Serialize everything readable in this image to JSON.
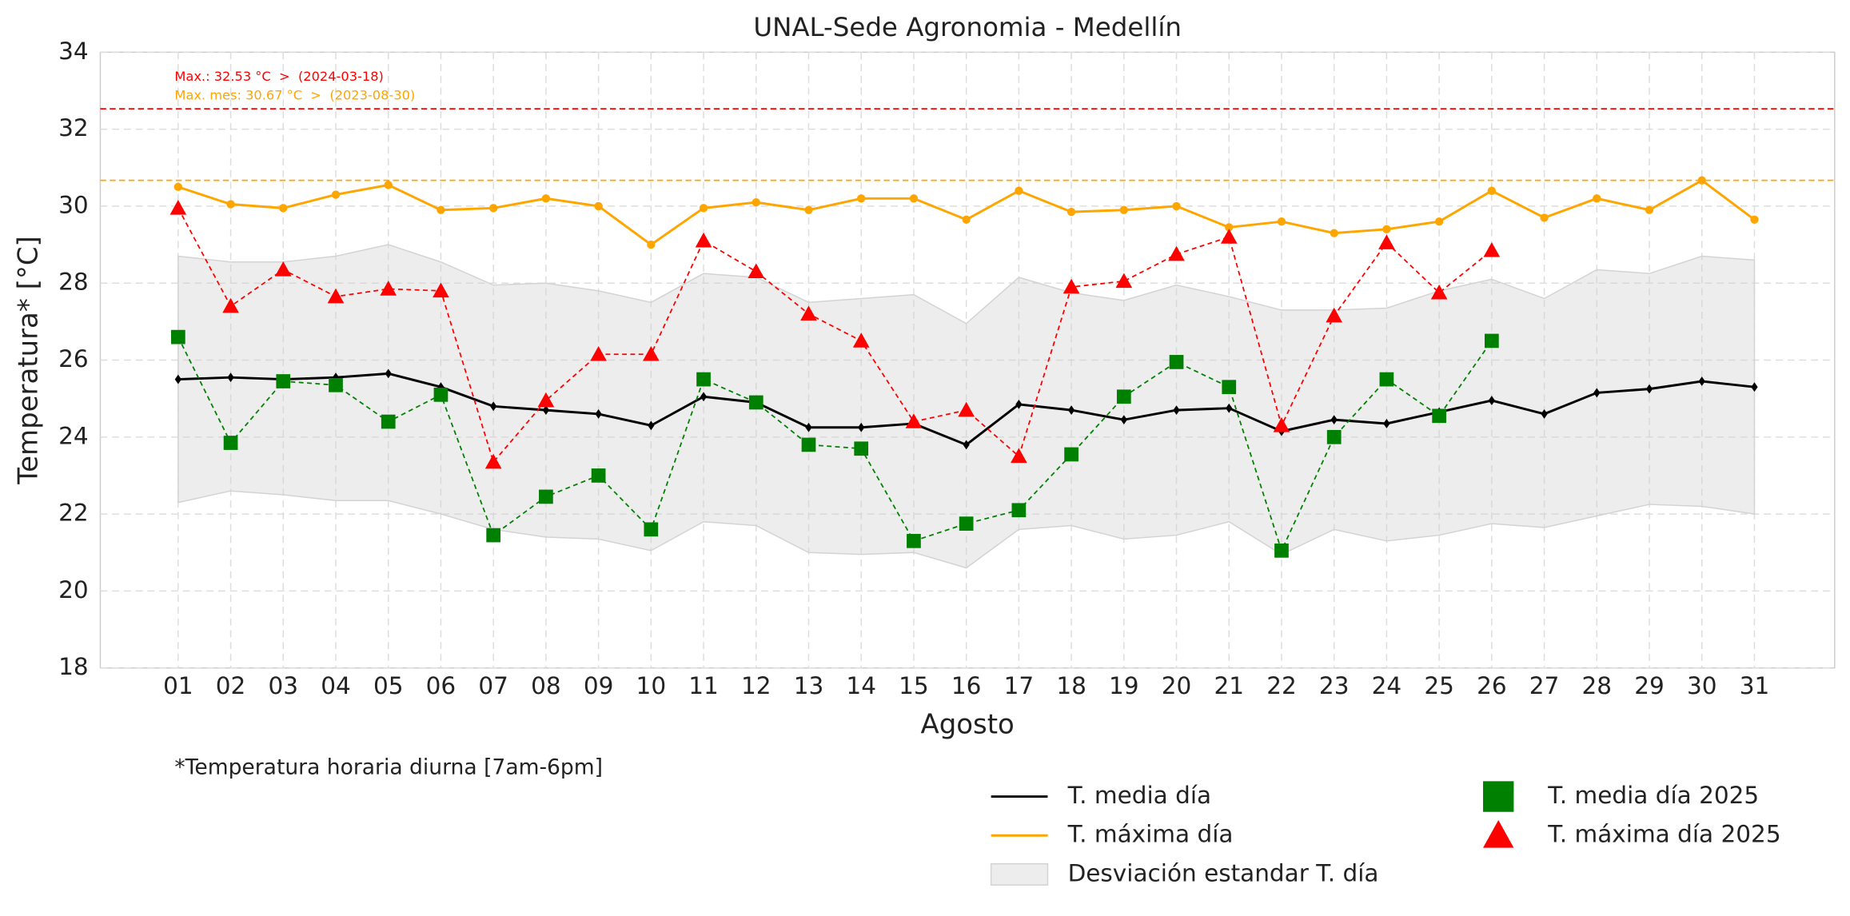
{
  "chart_data": {
    "type": "line",
    "title": "UNAL-Sede Agronomia - Medellín",
    "x_label": "Agosto",
    "y_label": "Temperatura* [°C]",
    "footnote": "*Temperatura horaria diurna [7am-6pm]",
    "categories": [
      "01",
      "02",
      "03",
      "04",
      "05",
      "06",
      "07",
      "08",
      "09",
      "10",
      "11",
      "12",
      "13",
      "14",
      "15",
      "16",
      "17",
      "18",
      "19",
      "20",
      "21",
      "22",
      "23",
      "24",
      "25",
      "26",
      "27",
      "28",
      "29",
      "30",
      "31"
    ],
    "ylim": [
      18,
      34
    ],
    "yticks": [
      18,
      20,
      22,
      24,
      26,
      28,
      30,
      32,
      34
    ],
    "grid": true,
    "hlines": [
      {
        "value": 32.53,
        "color": "#ff0000",
        "label": "Max.: 32.53 °C  >  (2024-03-18)"
      },
      {
        "value": 30.67,
        "color": "#ffa500",
        "label": "Max. mes: 30.67 °C  >  (2023-08-30)"
      }
    ],
    "series": [
      {
        "name": "T. media día",
        "color": "#000000",
        "style": "solid",
        "marker": "diamond",
        "values": [
          25.5,
          25.55,
          25.5,
          25.55,
          25.65,
          25.3,
          24.8,
          24.7,
          24.6,
          24.3,
          25.05,
          24.9,
          24.25,
          24.25,
          24.35,
          23.8,
          24.85,
          24.7,
          24.45,
          24.7,
          24.75,
          24.15,
          24.45,
          24.35,
          24.65,
          24.95,
          24.6,
          25.15,
          25.25,
          25.45,
          25.3
        ]
      },
      {
        "name": "T. máxima día",
        "color": "#ffa500",
        "style": "solid",
        "marker": "circle",
        "values": [
          30.5,
          30.05,
          29.95,
          30.3,
          30.55,
          29.9,
          29.95,
          30.2,
          30.0,
          29.0,
          29.95,
          30.1,
          29.9,
          30.2,
          30.2,
          29.65,
          30.4,
          29.85,
          29.9,
          30.0,
          29.45,
          29.6,
          29.3,
          29.4,
          29.6,
          30.4,
          29.7,
          30.2,
          29.9,
          30.67,
          29.65
        ]
      },
      {
        "name": "Desviación estandar T. día",
        "color": "#d3d3d3",
        "style": "band",
        "upper": [
          28.7,
          28.55,
          28.55,
          28.7,
          29.0,
          28.55,
          27.95,
          28.0,
          27.8,
          27.5,
          28.25,
          28.15,
          27.5,
          27.6,
          27.7,
          26.95,
          28.15,
          27.75,
          27.55,
          27.95,
          27.65,
          27.3,
          27.3,
          27.35,
          27.8,
          28.1,
          27.6,
          28.35,
          28.25,
          28.7,
          28.6
        ],
        "lower": [
          22.3,
          22.6,
          22.5,
          22.35,
          22.35,
          22.0,
          21.6,
          21.4,
          21.35,
          21.05,
          21.8,
          21.7,
          21.0,
          20.95,
          21.0,
          20.6,
          21.6,
          21.7,
          21.35,
          21.45,
          21.8,
          20.95,
          21.6,
          21.3,
          21.45,
          21.75,
          21.65,
          21.95,
          22.25,
          22.2,
          22.0
        ]
      },
      {
        "name": "T. media día 2025",
        "color": "#008000",
        "style": "dashed",
        "marker": "square",
        "values": [
          26.6,
          23.85,
          25.45,
          25.35,
          24.4,
          25.1,
          21.45,
          22.45,
          23.0,
          21.6,
          25.5,
          24.9,
          23.8,
          23.7,
          21.3,
          21.75,
          22.1,
          23.55,
          25.05,
          25.95,
          25.3,
          21.05,
          24.0,
          25.5,
          24.55,
          26.5,
          null,
          null,
          null,
          null,
          null
        ]
      },
      {
        "name": "T. máxima día 2025",
        "color": "#ff0000",
        "style": "dashed",
        "marker": "triangle",
        "values": [
          29.95,
          27.4,
          28.35,
          27.65,
          27.85,
          27.8,
          23.35,
          24.95,
          26.15,
          26.15,
          29.1,
          28.3,
          27.2,
          26.5,
          24.4,
          24.7,
          23.5,
          27.9,
          28.05,
          28.75,
          29.2,
          24.3,
          27.15,
          29.05,
          27.75,
          28.85,
          null,
          null,
          null,
          null,
          null
        ]
      }
    ]
  }
}
